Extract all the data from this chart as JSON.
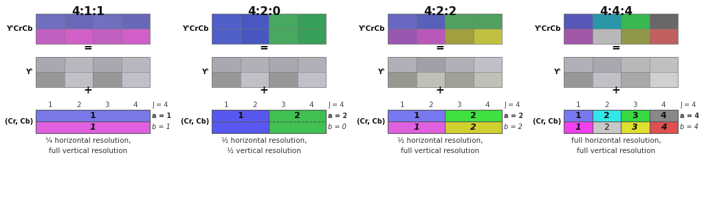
{
  "sections": [
    {
      "title": "4:1:1",
      "ycrcb_colors": [
        [
          "#7070c0",
          "#6868b8",
          "#7070c0",
          "#6868b8"
        ],
        [
          "#c060c0",
          "#d060c8",
          "#c060c0",
          "#d060c8"
        ]
      ],
      "y_colors": [
        [
          "#a8a8b0",
          "#b8b8c0",
          "#a8a8b0",
          "#b8b8c0"
        ],
        [
          "#989898",
          "#c0c0c8",
          "#989898",
          "#c0c0c8"
        ]
      ],
      "cr_row": {
        "segments": [
          {
            "label": "1",
            "cols": 4,
            "color": "#7878e8",
            "italic": false
          }
        ]
      },
      "cb_row": {
        "segments": [
          {
            "label": "1",
            "cols": 4,
            "color": "#e060e0",
            "italic": true
          }
        ]
      },
      "a_val": "1",
      "b_val": "1",
      "a_bold": true,
      "b_bold": false,
      "has_dashed": false,
      "caption": "¼ horizontal resolution,\nfull vertical resolution"
    },
    {
      "title": "4:2:0",
      "ycrcb_colors": [
        [
          "#5060c8",
          "#4858c0",
          "#48a860",
          "#38a058"
        ],
        [
          "#5060c8",
          "#4858c0",
          "#48a860",
          "#38a058"
        ]
      ],
      "y_colors": [
        [
          "#a8a8b0",
          "#b0b0b8",
          "#a8a8b0",
          "#b0b0b8"
        ],
        [
          "#989898",
          "#c0c0c8",
          "#989898",
          "#c0c0c8"
        ]
      ],
      "cr_row": {
        "segments": [
          {
            "label": "1",
            "cols": 2,
            "color": "#5858f0",
            "italic": false
          },
          {
            "label": "2",
            "cols": 2,
            "color": "#40c050",
            "italic": false
          }
        ]
      },
      "cb_row": {
        "segments": [
          {
            "label": "",
            "cols": 2,
            "color": "#5858f0",
            "italic": true
          },
          {
            "label": "",
            "cols": 2,
            "color": "#40c050",
            "italic": true
          }
        ]
      },
      "a_val": "2",
      "b_val": "0",
      "a_bold": true,
      "b_bold": false,
      "has_dashed": true,
      "caption": "½ horizontal resolution,\n½ vertical resolution"
    },
    {
      "title": "4:2:2",
      "ycrcb_colors": [
        [
          "#6868c0",
          "#5860b8",
          "#50a060",
          "#50a060"
        ],
        [
          "#9858b0",
          "#b858b8",
          "#a0a040",
          "#c0c040"
        ]
      ],
      "y_colors": [
        [
          "#b0b0b8",
          "#a0a0a8",
          "#b0b0b8",
          "#c0c0c8"
        ],
        [
          "#989890",
          "#c0c0b8",
          "#a0a098",
          "#c0c0b8"
        ]
      ],
      "cr_row": {
        "segments": [
          {
            "label": "1",
            "cols": 2,
            "color": "#7878f0",
            "italic": false
          },
          {
            "label": "2",
            "cols": 2,
            "color": "#40e040",
            "italic": false
          }
        ]
      },
      "cb_row": {
        "segments": [
          {
            "label": "1",
            "cols": 2,
            "color": "#e060e0",
            "italic": true
          },
          {
            "label": "2",
            "cols": 2,
            "color": "#d0d030",
            "italic": true
          }
        ]
      },
      "a_val": "2",
      "b_val": "2",
      "a_bold": true,
      "b_bold": false,
      "has_dashed": false,
      "caption": "½ horizontal resolution,\nfull vertical resolution"
    },
    {
      "title": "4:4:4",
      "ycrcb_colors": [
        [
          "#5858b8",
          "#2898a8",
          "#38b850",
          "#686868"
        ],
        [
          "#a058a8",
          "#b8b8b8",
          "#909848",
          "#c06060"
        ]
      ],
      "y_colors": [
        [
          "#b0b0b8",
          "#a8a8b0",
          "#b8b8b8",
          "#c0c0c0"
        ],
        [
          "#989898",
          "#c0c0c8",
          "#a8a8a8",
          "#d0d0d0"
        ]
      ],
      "cr_row": {
        "segments": [
          {
            "label": "1",
            "cols": 1,
            "color": "#7878f0",
            "italic": false
          },
          {
            "label": "2",
            "cols": 1,
            "color": "#30e8e8",
            "italic": false
          },
          {
            "label": "3",
            "cols": 1,
            "color": "#38d840",
            "italic": false
          },
          {
            "label": "4",
            "cols": 1,
            "color": "#888888",
            "italic": false
          }
        ]
      },
      "cb_row": {
        "segments": [
          {
            "label": "1",
            "cols": 1,
            "color": "#f040f0",
            "italic": true
          },
          {
            "label": "2",
            "cols": 1,
            "color": "#c8c8c8",
            "italic": false
          },
          {
            "label": "3",
            "cols": 1,
            "color": "#e0e030",
            "italic": true
          },
          {
            "label": "4",
            "cols": 1,
            "color": "#e05050",
            "italic": true
          }
        ]
      },
      "a_val": "4",
      "b_val": "4",
      "a_bold": true,
      "b_bold": false,
      "has_dashed": false,
      "caption": "full horizontal resolution,\nfull vertical resolution"
    }
  ],
  "bg_color": "#ffffff"
}
